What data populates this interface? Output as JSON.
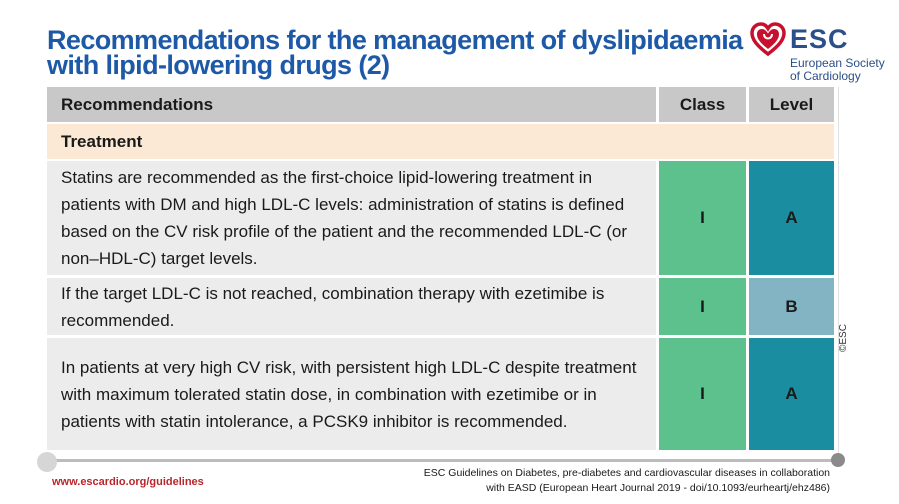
{
  "title": "Recommendations for the management of dyslipidaemia\nwith lipid-lowering drugs (2)",
  "logo": {
    "name": "ESC",
    "subtitle": "European Society\nof Cardiology",
    "color": "#c8102e"
  },
  "table": {
    "headers": {
      "recommendations": "Recommendations",
      "class": "Class",
      "level": "Level"
    },
    "section": "Treatment",
    "rows": [
      {
        "text": "Statins are recommended as the first-choice lipid-lowering treatment in patients with DM and high LDL-C levels: administration of statins is defined based on the CV risk profile of the patient and the recommended LDL-C (or non–HDL-C) target levels.",
        "class": "I",
        "level": "A",
        "level_color": "#1a8ea0"
      },
      {
        "text": "If the target LDL-C is not reached, combination therapy with ezetimibe is recommended.",
        "class": "I",
        "level": "B",
        "level_color": "#82b4c4"
      },
      {
        "text": "In patients at very high CV risk, with persistent high LDL-C despite treatment with maximum tolerated statin dose, in combination with ezetimibe or in patients with statin intolerance, a PCSK9 inhibitor is recommended.",
        "class": "I",
        "level": "A",
        "level_color": "#1a8ea0"
      }
    ]
  },
  "copyright": "©ESC",
  "footer": {
    "url": "www.escardio.org/guidelines",
    "citation": "ESC Guidelines on Diabetes, pre-diabetes and cardiovascular diseases in collaboration\nwith EASD (European Heart Journal 2019 - doi/10.1093/eurheartj/ehz486)"
  }
}
